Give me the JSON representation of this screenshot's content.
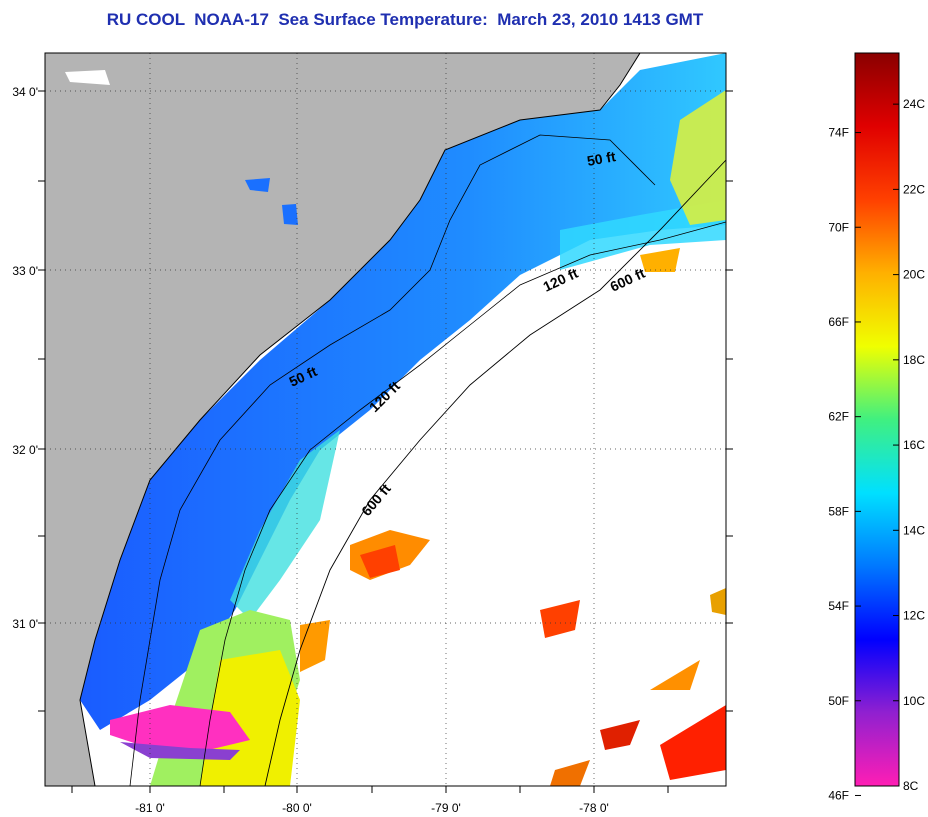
{
  "title": "RU COOL  NOAA-17  Sea Surface Temperature:  March 23, 2010 1413 GMT",
  "map": {
    "lat_ticks": [
      "34 0'",
      "33 0'",
      "32 0'",
      "31 0'"
    ],
    "lon_ticks": [
      "-81 0'",
      "-80 0'",
      "-79 0'",
      "-78 0'"
    ],
    "contour_labels": [
      "50 ft",
      "50 ft",
      "120 ft",
      "120 ft",
      "600 ft",
      "600 ft"
    ],
    "colors": {
      "land": "#b4b4b4",
      "no_data": "#ffffff",
      "cold": "#1e64ff",
      "mid": "#00c8ff",
      "warm": "#f0f000",
      "hot": "#ff4000"
    }
  },
  "colorbar": {
    "fahrenheit_labels": [
      "74F",
      "70F",
      "66F",
      "62F",
      "58F",
      "54F",
      "50F",
      "46F"
    ],
    "celsius_labels": [
      "24C",
      "22C",
      "20C",
      "18C",
      "16C",
      "14C",
      "12C",
      "10C",
      "8C"
    ],
    "stops": [
      "#ff1eb4",
      "#9020d0",
      "#0000ff",
      "#0078ff",
      "#00e0ff",
      "#40f080",
      "#f0ff00",
      "#ffb000",
      "#ff4000",
      "#e00000",
      "#8a0000"
    ]
  }
}
